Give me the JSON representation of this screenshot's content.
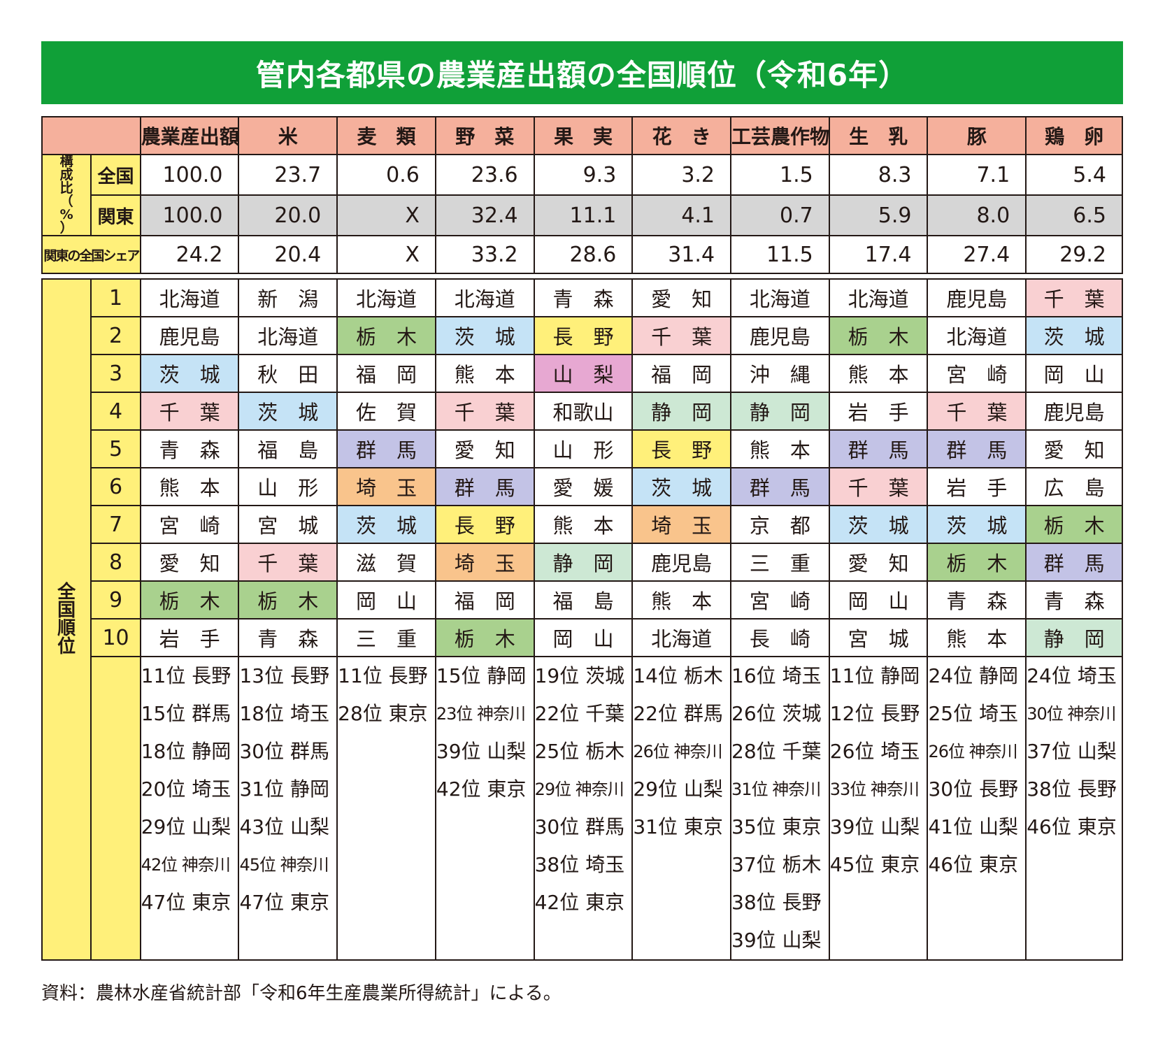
{
  "title": "管内各都県の農業産出額の全国順位（令和6年）",
  "headers": [
    "農業産出額",
    "米",
    "麦　類",
    "野　菜",
    "果　実",
    "花　き",
    "工芸農作物",
    "生　乳",
    "豚",
    "鶏　卵"
  ],
  "row_labels": {
    "composition": "構成比（%）",
    "national": "全国",
    "kanto": "関東",
    "share": "関東の全国シェア",
    "rank_group": "全国順位"
  },
  "national_values": [
    "100.0",
    "23.7",
    "0.6",
    "23.6",
    "9.3",
    "3.2",
    "1.5",
    "8.3",
    "7.1",
    "5.4"
  ],
  "kanto_values": [
    "100.0",
    "20.0",
    "X",
    "32.4",
    "11.1",
    "4.1",
    "0.7",
    "5.9",
    "8.0",
    "6.5"
  ],
  "share_values": [
    "24.2",
    "20.4",
    "X",
    "33.2",
    "28.6",
    "31.4",
    "11.5",
    "17.4",
    "27.4",
    "29.2"
  ],
  "rank_numbers": [
    "1",
    "2",
    "3",
    "4",
    "5",
    "6",
    "7",
    "8",
    "9",
    "10"
  ],
  "ranks": [
    [
      "北海道",
      "新　潟",
      "北海道",
      "北海道",
      "青　森",
      "愛　知",
      "北海道",
      "北海道",
      "鹿児島",
      "千　葉"
    ],
    [
      "鹿児島",
      "北海道",
      "栃　木",
      "茨　城",
      "長　野",
      "千　葉",
      "鹿児島",
      "栃　木",
      "北海道",
      "茨　城"
    ],
    [
      "茨　城",
      "秋　田",
      "福　岡",
      "熊　本",
      "山　梨",
      "福　岡",
      "沖　縄",
      "熊　本",
      "宮　崎",
      "岡　山"
    ],
    [
      "千　葉",
      "茨　城",
      "佐　賀",
      "千　葉",
      "和歌山",
      "静　岡",
      "静　岡",
      "岩　手",
      "千　葉",
      "鹿児島"
    ],
    [
      "青　森",
      "福　島",
      "群　馬",
      "愛　知",
      "山　形",
      "長　野",
      "熊　本",
      "群　馬",
      "群　馬",
      "愛　知"
    ],
    [
      "熊　本",
      "山　形",
      "埼　玉",
      "群　馬",
      "愛　媛",
      "茨　城",
      "群　馬",
      "千　葉",
      "岩　手",
      "広　島"
    ],
    [
      "宮　崎",
      "宮　城",
      "茨　城",
      "長　野",
      "熊　本",
      "埼　玉",
      "京　都",
      "茨　城",
      "茨　城",
      "栃　木"
    ],
    [
      "愛　知",
      "千　葉",
      "滋　賀",
      "埼　玉",
      "静　岡",
      "鹿児島",
      "三　重",
      "愛　知",
      "栃　木",
      "群　馬"
    ],
    [
      "栃　木",
      "栃　木",
      "岡　山",
      "福　岡",
      "福　島",
      "熊　本",
      "宮　崎",
      "岡　山",
      "青　森",
      "青　森"
    ],
    [
      "岩　手",
      "青　森",
      "三　重",
      "栃　木",
      "岡　山",
      "北海道",
      "長　崎",
      "宮　城",
      "熊　本",
      "静　岡"
    ]
  ],
  "colors": {
    "茨城": "#c5e3f6",
    "千葉": "#f9d0d2",
    "栃木": "#a9d18e",
    "群馬": "#c3c3e6",
    "埼玉": "#f9c48c",
    "長野": "#fff07a",
    "山梨": "#e7a8d2",
    "静岡": "#cde8d4"
  },
  "others": [
    [
      "11位 長野",
      "15位 群馬",
      "18位 静岡",
      "20位 埼玉",
      "29位 山梨",
      "42位 神奈川",
      "47位 東京"
    ],
    [
      "13位 長野",
      "18位 埼玉",
      "30位 群馬",
      "31位 静岡",
      "43位 山梨",
      "45位 神奈川",
      "47位 東京"
    ],
    [
      "11位 長野",
      "28位 東京"
    ],
    [
      "15位 静岡",
      "23位 神奈川",
      "39位 山梨",
      "42位 東京"
    ],
    [
      "19位 茨城",
      "22位 千葉",
      "25位 栃木",
      "29位 神奈川",
      "30位 群馬",
      "38位 埼玉",
      "42位 東京"
    ],
    [
      "14位 栃木",
      "22位 群馬",
      "26位 神奈川",
      "29位 山梨",
      "31位 東京"
    ],
    [
      "16位 埼玉",
      "26位 茨城",
      "28位 千葉",
      "31位 神奈川",
      "35位 東京",
      "37位 栃木",
      "38位 長野",
      "39位 山梨"
    ],
    [
      "11位 静岡",
      "12位 長野",
      "26位 埼玉",
      "33位 神奈川",
      "39位 山梨",
      "45位 東京"
    ],
    [
      "24位 静岡",
      "25位 埼玉",
      "26位 神奈川",
      "30位 長野",
      "41位 山梨",
      "46位 東京"
    ],
    [
      "24位 埼玉",
      "30位 神奈川",
      "37位 山梨",
      "38位 長野",
      "46位 東京"
    ]
  ],
  "source": "資料：農林水産省統計部「令和6年生産農業所得統計」による。"
}
